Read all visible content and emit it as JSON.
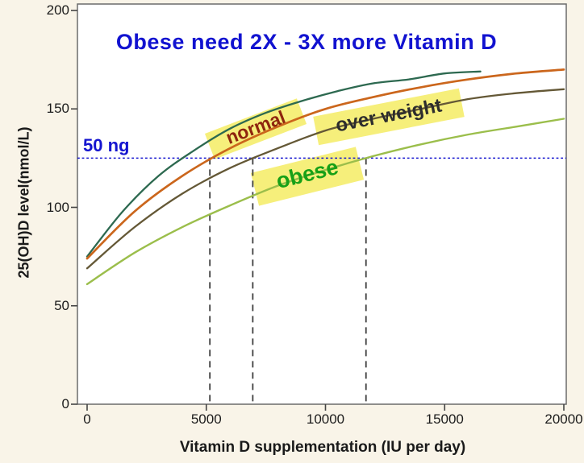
{
  "title": {
    "text": "Obese need 2X - 3X more Vitamin D",
    "color": "#1112d0"
  },
  "threshold": {
    "label": "50 ng",
    "value_nmol": 125,
    "color": "#1414cf"
  },
  "annotations": {
    "normal": {
      "text": "normal",
      "color": "#8e250e",
      "highlight": "#f6ef7b"
    },
    "over_weight": {
      "text": "over weight",
      "color": "#2d2d2d",
      "highlight": "#f6ef7b"
    },
    "obese": {
      "text": "obese",
      "color": "#17a017",
      "highlight": "#f6ef7b"
    }
  },
  "chart_data": {
    "type": "line",
    "title": "Obese need 2X - 3X more Vitamin D",
    "xlabel": "Vitamin D supplementation (IU per day)",
    "ylabel": "25(OH)D level(nmol/L)",
    "xlim": [
      0,
      20000
    ],
    "ylim": [
      0,
      200
    ],
    "x_ticks": [
      0,
      5000,
      10000,
      15000,
      20000
    ],
    "y_ticks": [
      0,
      50,
      100,
      150,
      200
    ],
    "grid": false,
    "legend": "none (rotated highlighted in-plot labels)",
    "threshold_line": {
      "y": 125,
      "label": "50 ng",
      "style": "dotted",
      "color": "#1414cf"
    },
    "guide_lines_x": {
      "values": [
        5150,
        6950,
        11700
      ],
      "style": "dashed",
      "color": "#3f3f3f",
      "note": "vertical dashed lines where normal / over weight / obese curves reach 125 nmol/L"
    },
    "series": [
      {
        "id": "top-unlabeled",
        "label": "",
        "color": "#2d6950",
        "x": [
          0,
          1500,
          3000,
          4500,
          6000,
          7500,
          9000,
          10500,
          12000,
          13500,
          15000,
          16500
        ],
        "y": [
          75,
          98,
          116,
          129,
          140,
          148,
          154,
          159,
          163,
          165,
          168,
          169
        ]
      },
      {
        "id": "normal",
        "label": "normal",
        "color": "#cb661c",
        "x": [
          0,
          2000,
          4000,
          6000,
          8000,
          10000,
          12000,
          14000,
          16000,
          18000,
          20000
        ],
        "y": [
          74,
          98,
          116,
          130,
          141,
          150,
          156,
          161,
          165,
          168,
          170
        ]
      },
      {
        "id": "over-weight",
        "label": "over weight",
        "color": "#645836",
        "x": [
          0,
          2000,
          4000,
          6000,
          8000,
          10000,
          12000,
          14000,
          16000,
          18000,
          20000
        ],
        "y": [
          69,
          90,
          107,
          120,
          130,
          139,
          145,
          150,
          155,
          158,
          160
        ]
      },
      {
        "id": "obese",
        "label": "obese",
        "color": "#9bbe4b",
        "x": [
          0,
          2000,
          4000,
          6000,
          8000,
          10000,
          12000,
          14000,
          16000,
          18000,
          20000
        ],
        "y": [
          61,
          77,
          90,
          101,
          111,
          119,
          126,
          132,
          137,
          141,
          145
        ]
      }
    ]
  }
}
